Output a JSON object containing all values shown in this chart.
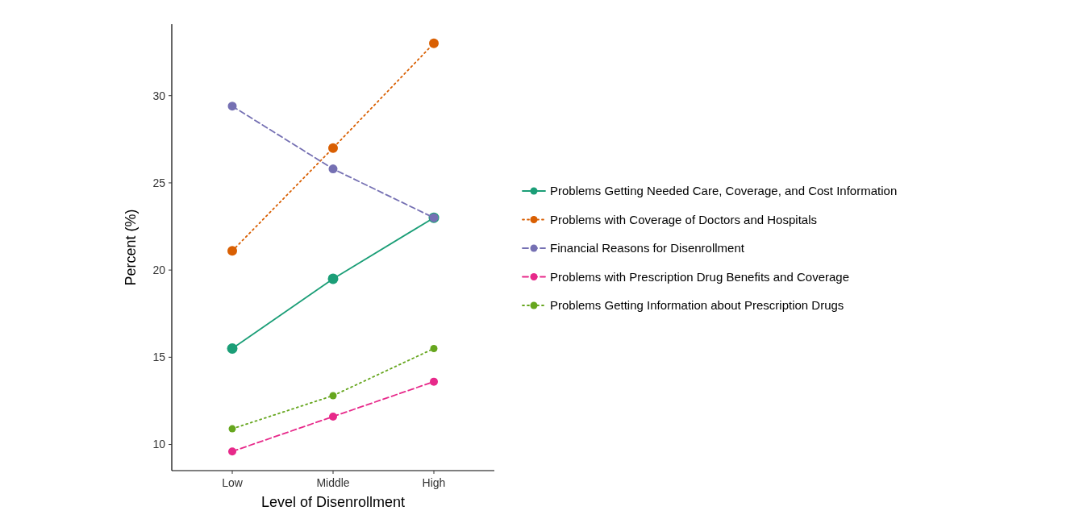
{
  "chart_data": {
    "type": "line",
    "xlabel": "Level of Disenrollment",
    "ylabel": "Percent (%)",
    "categories": [
      "Low",
      "Middle",
      "High"
    ],
    "series": [
      {
        "name": "Problems Getting Needed Care, Coverage, and Cost Information",
        "color": "#1b9e77",
        "line_style": "solid",
        "values": [
          15.5,
          19.5,
          23.0
        ]
      },
      {
        "name": "Problems with Coverage of Doctors and Hospitals",
        "color": "#d95f02",
        "line_style": "dotted",
        "values": [
          21.1,
          27.0,
          33.0
        ]
      },
      {
        "name": "Financial Reasons for Disenrollment",
        "color": "#7570b3",
        "line_style": "dashed",
        "values": [
          29.4,
          25.8,
          23.0
        ]
      },
      {
        "name": "Problems with Prescription Drug Benefits and Coverage",
        "color": "#e7298a",
        "line_style": "dashed",
        "values": [
          9.6,
          11.6,
          13.6
        ]
      },
      {
        "name": "Problems Getting Information about Prescription Drugs",
        "color": "#66a61e",
        "line_style": "dotted",
        "values": [
          10.9,
          12.8,
          15.5
        ]
      }
    ],
    "ylim": [
      8.5,
      34.1
    ],
    "yticks": [
      10,
      15,
      20,
      25,
      30
    ],
    "grid": false,
    "legend": "right",
    "marker": "circle"
  }
}
